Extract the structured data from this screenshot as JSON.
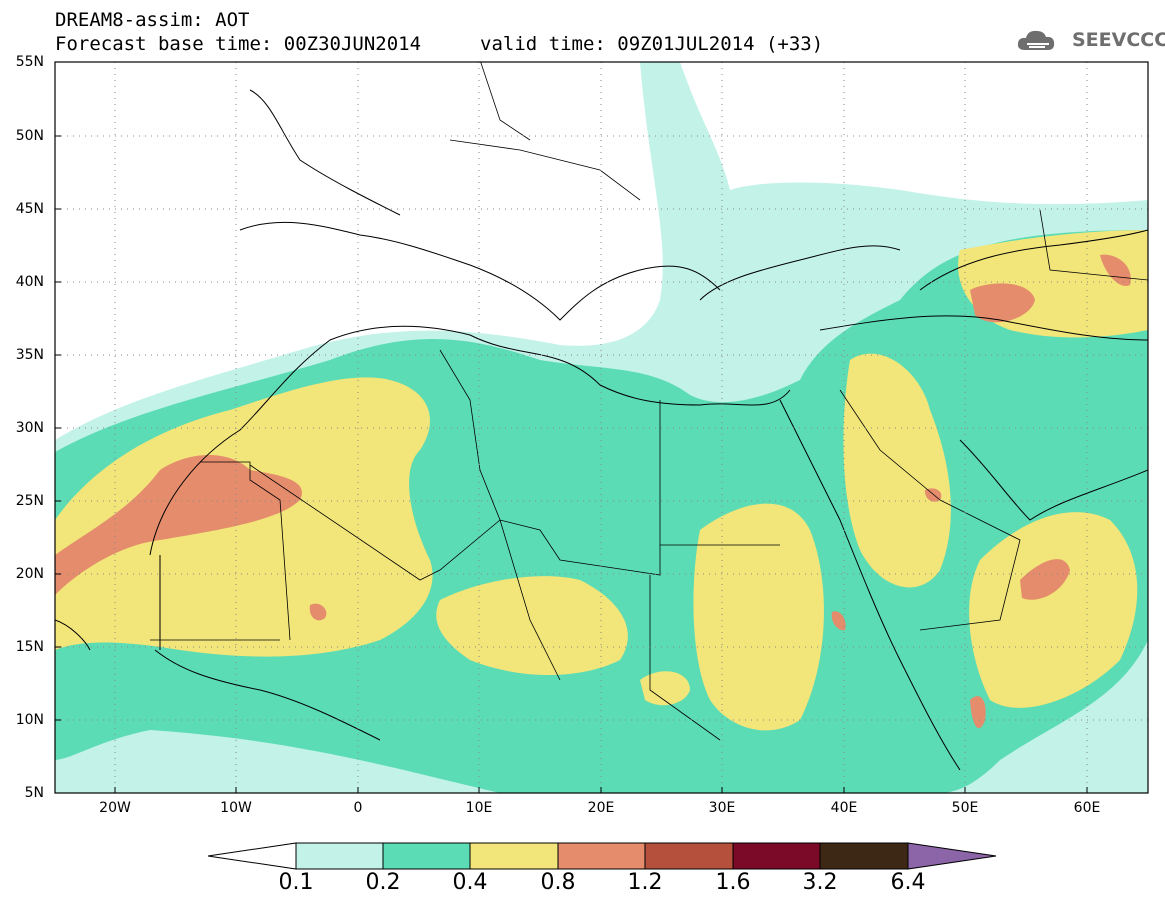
{
  "header": {
    "line1": "DREAM8-assim: AOT",
    "line2": "Forecast base time: 00Z30JUN2014",
    "valid": "valid time: 09Z01JUL2014 (+33)"
  },
  "logo": {
    "text": "SEEVCCC",
    "icon": "cloud-icon"
  },
  "map": {
    "lat_labels": [
      "55N",
      "50N",
      "45N",
      "40N",
      "35N",
      "30N",
      "25N",
      "20N",
      "15N",
      "10N",
      "5N"
    ],
    "lon_labels": [
      "20W",
      "10W",
      "0",
      "10E",
      "20E",
      "30E",
      "40E",
      "50E",
      "60E"
    ],
    "colors": {
      "level_0_1": "#c2f2e8",
      "level_0_2": "#5cdcb4",
      "level_0_4": "#f2e57a",
      "level_0_8": "#e48c6c",
      "level_1_2": "#b4503c",
      "level_1_6": "#7a0a28",
      "level_3_2": "#3c2814",
      "level_6_4": "#8c64a8"
    }
  },
  "colorbar": {
    "labels": [
      "0.1",
      "0.2",
      "0.4",
      "0.8",
      "1.2",
      "1.6",
      "3.2",
      "6.4"
    ]
  }
}
